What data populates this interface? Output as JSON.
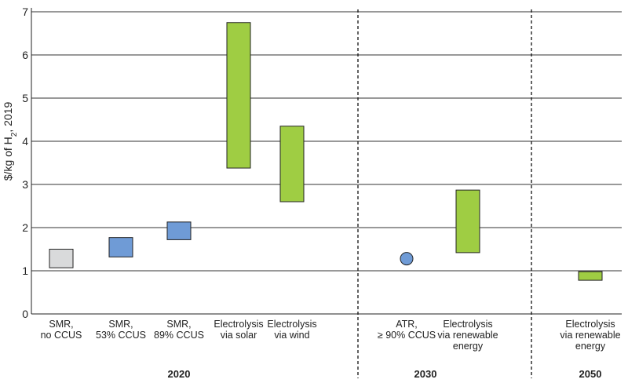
{
  "chart_data": {
    "type": "floating-bar",
    "ylabel_parts": [
      "$/kg of H",
      "2",
      ", 2019"
    ],
    "ylim": [
      0,
      7
    ],
    "yticks": [
      0,
      1,
      2,
      3,
      4,
      5,
      6,
      7
    ],
    "grid": true,
    "colors": {
      "grey": "#d9dadb",
      "blue": "#6f9bd6",
      "green": "#9fcd43",
      "outline": "#222222",
      "grid": "#333333"
    },
    "groups": [
      {
        "label": "2020"
      },
      {
        "label": "2030"
      },
      {
        "label": "2050"
      }
    ],
    "items": [
      {
        "label_lines": [
          "SMR,",
          "no CCUS"
        ],
        "group": "2020",
        "low": 1.07,
        "high": 1.5,
        "color": "grey",
        "marker": "bar"
      },
      {
        "label_lines": [
          "SMR,",
          "53% CCUS"
        ],
        "group": "2020",
        "low": 1.32,
        "high": 1.77,
        "color": "blue",
        "marker": "bar"
      },
      {
        "label_lines": [
          "SMR,",
          "89% CCUS"
        ],
        "group": "2020",
        "low": 1.72,
        "high": 2.13,
        "color": "blue",
        "marker": "bar"
      },
      {
        "label_lines": [
          "Electrolysis",
          "via solar"
        ],
        "group": "2020",
        "low": 3.38,
        "high": 6.75,
        "color": "green",
        "marker": "bar"
      },
      {
        "label_lines": [
          "Electrolysis",
          "via wind"
        ],
        "group": "2020",
        "low": 2.6,
        "high": 4.35,
        "color": "green",
        "marker": "bar"
      },
      {
        "label_lines": [
          "ATR,",
          "≥ 90% CCUS"
        ],
        "group": "2030",
        "value": 1.28,
        "color": "blue",
        "marker": "point"
      },
      {
        "label_lines": [
          "Electrolysis",
          "via renewable",
          "energy"
        ],
        "group": "2030",
        "low": 1.42,
        "high": 2.87,
        "color": "green",
        "marker": "bar"
      },
      {
        "label_lines": [
          "Electrolysis",
          "via renewable",
          "energy"
        ],
        "group": "2050",
        "low": 0.78,
        "high": 0.98,
        "color": "green",
        "marker": "bar"
      }
    ]
  }
}
